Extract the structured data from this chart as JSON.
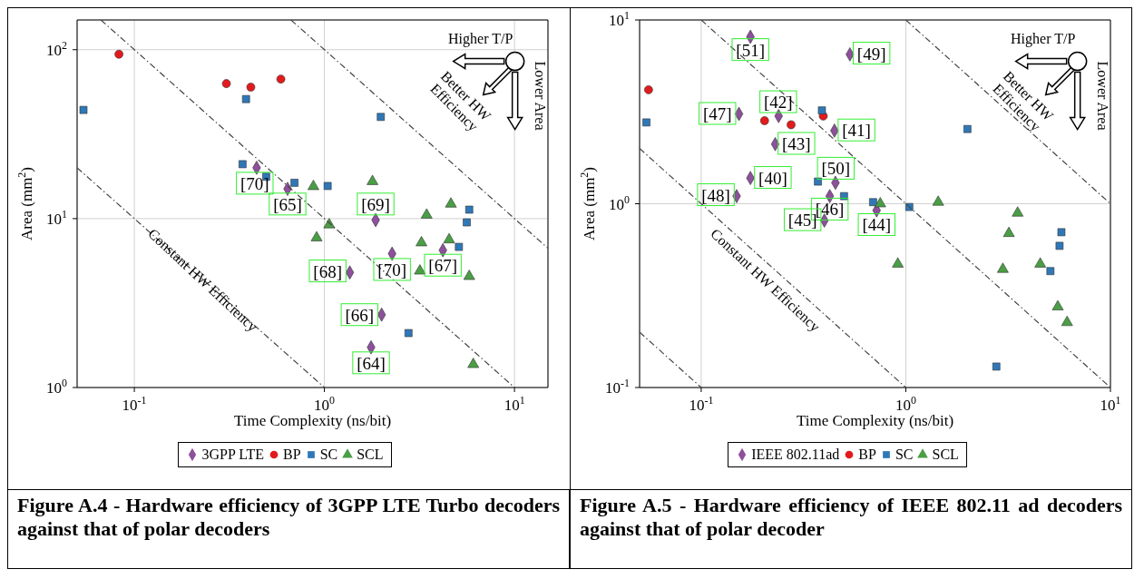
{
  "chart_data": [
    {
      "type": "scatter",
      "title": "Figure A.4 - Hardware efficiency of 3GPP LTE Turbo decoders against that of polar decoders",
      "xlabel": "Time Complexity (ns/bit)",
      "ylabel": "Area (mm$^{2}$)",
      "log": "xy",
      "grid": true,
      "legend": "bottom",
      "xlim": [
        0.05,
        15
      ],
      "ylim": [
        1,
        150
      ],
      "xticks": [
        {
          "value": 0.1,
          "label": "10$^{-1}$"
        },
        {
          "value": 1,
          "label": "10$^{0}$"
        },
        {
          "value": 10,
          "label": "10$^{1}$"
        }
      ],
      "yticks": [
        {
          "value": 1,
          "label": "10$^{0}$"
        },
        {
          "value": 10,
          "label": "10$^{1}$"
        },
        {
          "value": 100,
          "label": "10$^{2}$"
        }
      ],
      "series": [
        {
          "name": "3GPP LTE",
          "color": "#8e4f9c",
          "marker": "diamond",
          "x": [
            0.44,
            0.64,
            1.86,
            2.27,
            4.2,
            1.36,
            2.0,
            1.76
          ],
          "values": [
            20,
            15,
            9.8,
            6.2,
            6.5,
            4.8,
            2.7,
            1.73
          ]
        },
        {
          "name": "BP",
          "color": "#e31a1c",
          "marker": "circle",
          "x": [
            0.083,
            0.305,
            0.41,
            0.59
          ],
          "values": [
            94,
            63,
            60,
            67
          ]
        },
        {
          "name": "SC",
          "color": "#2f78b8",
          "marker": "square",
          "x": [
            0.054,
            0.387,
            1.98,
            0.371,
            0.494,
            0.696,
            1.04,
            5.78,
            5.61,
            5.1,
            2.77
          ],
          "values": [
            44,
            51,
            40,
            21,
            17.7,
            16.3,
            15.6,
            11.3,
            9.5,
            6.8,
            2.1
          ]
        },
        {
          "name": "SCL",
          "color": "#4a9e45",
          "marker": "triangle",
          "x": [
            0.875,
            1.79,
            1.06,
            0.91,
            4.63,
            3.45,
            3.24,
            4.53,
            3.18,
            5.78,
            6.07
          ],
          "values": [
            15.5,
            16.6,
            9.2,
            7.7,
            12.2,
            10.5,
            7.2,
            7.5,
            4.9,
            4.55,
            1.37
          ]
        },
        {
          "type": "line",
          "color": "#444444",
          "line_style": "dashed",
          "x": [
            0.05,
            1
          ],
          "values": [
            20,
            1
          ]
        },
        {
          "type": "line",
          "color": "#444444",
          "line_style": "dashed",
          "x": [
            0.0667,
            10
          ],
          "values": [
            150,
            1
          ]
        },
        {
          "type": "line",
          "color": "#444444",
          "line_style": "dashed",
          "x": [
            0.667,
            15
          ],
          "values": [
            150,
            6.67
          ]
        }
      ],
      "annotations": [
        "Higher T/P",
        "Better HW Efficiency",
        "Lower Area",
        "Constant HW Efficiency",
        {
          "text": "[70]",
          "x": 0.43,
          "y": 16.2
        },
        {
          "text": "[65]",
          "x": 0.64,
          "y": 12.2
        },
        {
          "text": "[69]",
          "x": 1.86,
          "y": 12.2
        },
        {
          "text": "[68]",
          "x": 1.04,
          "y": 4.9
        },
        {
          "text": "[70]",
          "x": 2.27,
          "y": 5.0
        },
        {
          "text": "[67]",
          "x": 4.2,
          "y": 5.3
        },
        {
          "text": "[66]",
          "x": 1.53,
          "y": 2.7
        },
        {
          "text": "[64]",
          "x": 1.76,
          "y": 1.4
        }
      ]
    },
    {
      "type": "scatter",
      "title": "Figure A.5 - Hardware efficiency of IEEE 802.11 ad decoders against that of polar decoder",
      "xlabel": "Time Complexity (ns/bit)",
      "ylabel": "Area (mm$^{2}$)",
      "log": "xy",
      "grid": true,
      "legend": "bottom",
      "xlim": [
        0.05,
        10
      ],
      "ylim": [
        0.1,
        10
      ],
      "xticks": [
        {
          "value": 0.1,
          "label": "10$^{-1}$"
        },
        {
          "value": 1,
          "label": "10$^{0}$"
        },
        {
          "value": 10,
          "label": "10$^{1}$"
        }
      ],
      "yticks": [
        {
          "value": 0.1,
          "label": "10$^{-1}$"
        },
        {
          "value": 1,
          "label": "10$^{0}$"
        },
        {
          "value": 10,
          "label": "10$^{1}$"
        }
      ],
      "series": [
        {
          "name": "IEEE 802.11ad",
          "color": "#8e4f9c",
          "marker": "diamond",
          "x": [
            0.174,
            0.533,
            0.153,
            0.239,
            0.448,
            0.23,
            0.174,
            0.453,
            0.149,
            0.425,
            0.72,
            0.4
          ],
          "values": [
            8.1,
            6.5,
            3.08,
            3.0,
            2.5,
            2.11,
            1.38,
            1.3,
            1.1,
            1.1,
            0.92,
            0.81
          ]
        },
        {
          "name": "BP",
          "color": "#e31a1c",
          "marker": "circle",
          "x": [
            0.0553,
            0.204,
            0.275,
            0.395
          ],
          "values": [
            4.17,
            2.83,
            2.69,
            3.0
          ]
        },
        {
          "name": "SC",
          "color": "#2f78b8",
          "marker": "square",
          "x": [
            0.054,
            0.389,
            2.0,
            0.372,
            0.499,
            0.692,
            1.04,
            5.76,
            5.64,
            5.09,
            2.77
          ],
          "values": [
            2.77,
            3.22,
            2.55,
            1.32,
            1.1,
            1.02,
            0.96,
            0.7,
            0.59,
            0.43,
            0.13
          ]
        },
        {
          "name": "SCL",
          "color": "#4a9e45",
          "marker": "triangle",
          "x": [
            0.75,
            1.44,
            3.52,
            3.19,
            0.914,
            2.98,
            4.54,
            5.53,
            6.14
          ],
          "values": [
            1.0,
            1.02,
            0.89,
            0.69,
            0.47,
            0.44,
            0.47,
            0.275,
            0.226
          ]
        },
        {
          "type": "line",
          "color": "#444444",
          "line_style": "dashed",
          "x": [
            0.05,
            0.1
          ],
          "values": [
            0.2,
            0.1
          ]
        },
        {
          "type": "line",
          "color": "#444444",
          "line_style": "dashed",
          "x": [
            0.05,
            1
          ],
          "values": [
            2,
            0.1
          ]
        },
        {
          "type": "line",
          "color": "#444444",
          "line_style": "dashed",
          "x": [
            0.1,
            10
          ],
          "values": [
            10,
            0.1
          ]
        },
        {
          "type": "line",
          "color": "#444444",
          "line_style": "dashed",
          "x": [
            1,
            10
          ],
          "values": [
            10,
            1
          ]
        }
      ],
      "annotations": [
        "Higher T/P",
        "Better HW Efficiency",
        "Lower Area",
        "Constant HW Efficiency",
        {
          "text": "[51]",
          "x": 0.174,
          "y": 6.9
        },
        {
          "text": "[49]",
          "x": 0.68,
          "y": 6.6
        },
        {
          "text": "[42]",
          "x": 0.238,
          "y": 3.59
        },
        {
          "text": "[47]",
          "x": 0.12,
          "y": 3.1
        },
        {
          "text": "[41]",
          "x": 0.574,
          "y": 2.52
        },
        {
          "text": "[43]",
          "x": 0.292,
          "y": 2.13
        },
        {
          "text": "[50]",
          "x": 0.455,
          "y": 1.56
        },
        {
          "text": "[40]",
          "x": 0.224,
          "y": 1.39
        },
        {
          "text": "[48]",
          "x": 0.118,
          "y": 1.12
        },
        {
          "text": "[46]",
          "x": 0.425,
          "y": 0.935
        },
        {
          "text": "[45]",
          "x": 0.313,
          "y": 0.819
        },
        {
          "text": "[44]",
          "x": 0.72,
          "y": 0.77
        }
      ]
    }
  ]
}
